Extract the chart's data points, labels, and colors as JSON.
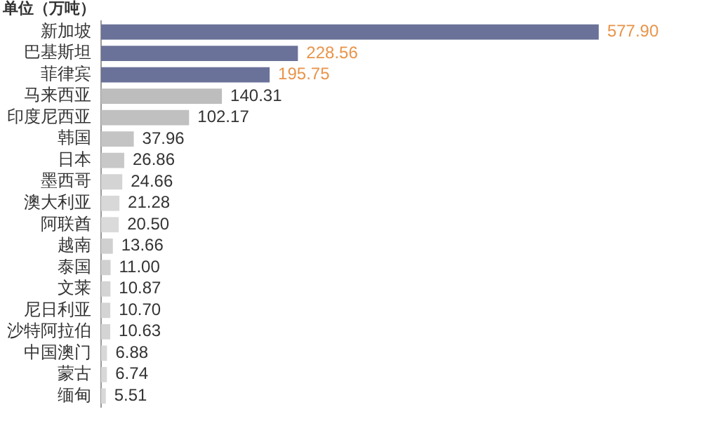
{
  "chart_data": {
    "type": "bar",
    "orientation": "horizontal",
    "title": "单位（万吨）",
    "categories": [
      "新加坡",
      "巴基斯坦",
      "菲律宾",
      "马来西亚",
      "印度尼西亚",
      "韩国",
      "日本",
      "墨西哥",
      "澳大利亚",
      "阿联酋",
      "越南",
      "泰国",
      "文莱",
      "尼日利亚",
      "沙特阿拉伯",
      "中国澳门",
      "蒙古",
      "缅甸"
    ],
    "values": [
      577.9,
      228.56,
      195.75,
      140.31,
      102.17,
      37.96,
      26.86,
      24.66,
      21.28,
      20.5,
      13.66,
      11.0,
      10.87,
      10.7,
      10.63,
      6.88,
      6.74,
      5.51
    ],
    "colors": [
      "#6b7299",
      "#6b7299",
      "#6b7299",
      "#bdbdbd",
      "#c0c0c0",
      "#c4c4c4",
      "#c8c8c8",
      "#d4d4d4",
      "#d8d8d8",
      "#dadada",
      "#d0d0d0",
      "#d0d0d0",
      "#d4d4d4",
      "#d4d4d4",
      "#d4d4d4",
      "#d8d8d8",
      "#d8d8d8",
      "#d8d8d8"
    ],
    "value_labels": [
      "577.90",
      "228.56",
      "195.75",
      "140.31",
      "102.17",
      "37.96",
      "26.86",
      "24.66",
      "21.28",
      "20.50",
      "13.66",
      "11.00",
      "10.87",
      "10.70",
      "10.63",
      "6.88",
      "6.74",
      "5.51"
    ],
    "tick_labels": "y",
    "grid": false,
    "legend": false
  }
}
